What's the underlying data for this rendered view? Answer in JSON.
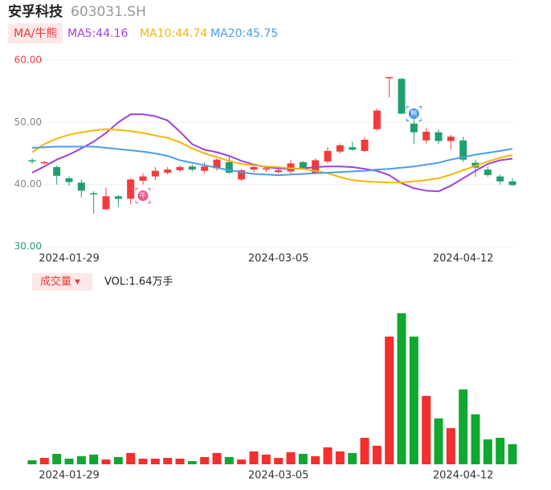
{
  "chart_data": {
    "type": "candlestick",
    "title": "安孚科技",
    "subtitle": "603031.SH",
    "legend_button": "MA/牛熊",
    "categories": [
      null,
      null,
      null,
      "2024-01-29",
      null,
      null,
      null,
      null,
      null,
      null,
      null,
      null,
      null,
      null,
      null,
      null,
      null,
      null,
      null,
      null,
      "2024-03-05",
      null,
      null,
      null,
      null,
      null,
      null,
      null,
      null,
      null,
      null,
      null,
      null,
      null,
      null,
      "2024-04-12",
      null,
      null,
      null,
      null
    ],
    "open": [
      43.9,
      43.5,
      42.8,
      41.0,
      40.3,
      38.6,
      36.0,
      38.1,
      37.7,
      40.6,
      41.3,
      41.9,
      42.3,
      42.9,
      42.2,
      42.6,
      43.6,
      40.8,
      42.4,
      42.4,
      42.0,
      42.1,
      43.6,
      41.9,
      43.7,
      45.3,
      46.0,
      45.4,
      48.9,
      57.1,
      57.0,
      49.8,
      47.1,
      48.4,
      47.0,
      47.1,
      43.5,
      42.4,
      41.3,
      40.5
    ],
    "high": [
      44.2,
      43.8,
      43.1,
      41.3,
      40.8,
      38.9,
      39.5,
      38.3,
      41.0,
      41.8,
      42.8,
      42.8,
      43.1,
      43.2,
      43.6,
      44.2,
      44.5,
      42.5,
      43.0,
      43.0,
      42.6,
      44.0,
      43.8,
      44.2,
      46.0,
      46.6,
      46.9,
      47.6,
      52.2,
      57.3,
      57.2,
      50.5,
      49.1,
      48.8,
      48.0,
      47.7,
      44.0,
      42.9,
      41.6,
      41.0
    ],
    "low": [
      43.3,
      43.2,
      40.0,
      39.8,
      37.9,
      35.3,
      36.0,
      36.4,
      36.8,
      40.0,
      40.7,
      41.6,
      42.0,
      42.1,
      41.8,
      42.2,
      41.7,
      40.6,
      42.0,
      42.0,
      41.8,
      41.8,
      42.4,
      41.8,
      43.4,
      45.0,
      45.4,
      45.2,
      48.6,
      54.0,
      51.3,
      46.5,
      46.6,
      46.5,
      45.6,
      43.6,
      41.2,
      41.2,
      40.0,
      39.8
    ],
    "close": [
      43.7,
      43.6,
      41.4,
      40.4,
      39.0,
      38.4,
      38.1,
      37.7,
      40.8,
      41.3,
      42.2,
      42.4,
      42.8,
      42.4,
      42.9,
      44.0,
      41.9,
      42.3,
      42.8,
      42.6,
      42.3,
      43.4,
      42.6,
      43.9,
      45.4,
      46.3,
      45.6,
      47.2,
      51.9,
      57.3,
      51.4,
      48.4,
      48.5,
      47.0,
      47.7,
      44.0,
      42.7,
      41.5,
      40.5,
      39.9
    ],
    "up_color": "#f23b3b",
    "down_color": "#1f9f6e",
    "series": [
      {
        "name": "MA5:44.16",
        "color": "#a040e0",
        "values": [
          41.9,
          42.9,
          44.0,
          44.8,
          45.8,
          46.9,
          48.3,
          50.0,
          51.3,
          51.3,
          51.0,
          50.3,
          48.5,
          46.5,
          45.6,
          45.2,
          44.6,
          43.8,
          43.2,
          42.8,
          42.6,
          42.5,
          42.6,
          42.8,
          42.9,
          42.9,
          42.8,
          42.5,
          42.2,
          41.5,
          40.2,
          39.4,
          39.0,
          38.9,
          39.8,
          41.0,
          42.2,
          43.3,
          43.9,
          44.16
        ]
      },
      {
        "name": "MA10:44.74",
        "color": "#f2b705",
        "values": [
          45.2,
          46.5,
          47.4,
          48.0,
          48.4,
          48.7,
          48.9,
          48.8,
          48.6,
          48.3,
          47.9,
          47.5,
          46.8,
          45.8,
          45.0,
          44.4,
          43.8,
          43.3,
          43.1,
          42.9,
          42.8,
          42.6,
          42.5,
          42.2,
          41.8,
          41.2,
          40.7,
          40.5,
          40.4,
          40.3,
          40.3,
          40.5,
          40.7,
          41.0,
          41.6,
          42.3,
          43.0,
          43.7,
          44.3,
          44.74
        ]
      },
      {
        "name": "MA20:45.75",
        "color": "#4a9ee8",
        "values": [
          45.9,
          46.0,
          46.1,
          46.1,
          46.1,
          46.1,
          45.9,
          45.7,
          45.5,
          45.3,
          45.0,
          44.6,
          43.9,
          43.5,
          43.1,
          42.7,
          42.3,
          42.0,
          41.7,
          41.6,
          41.5,
          41.6,
          41.7,
          41.8,
          41.9,
          42.0,
          42.1,
          42.2,
          42.4,
          42.5,
          42.7,
          42.9,
          43.2,
          43.5,
          44.0,
          44.4,
          44.8,
          45.1,
          45.4,
          45.75
        ]
      }
    ],
    "ylim": [
      30,
      60
    ],
    "yticks": [
      {
        "value": 30,
        "label": "30.00"
      },
      {
        "value": 40,
        "label": "40.00"
      },
      {
        "value": 50,
        "label": "50.00"
      },
      {
        "value": 60,
        "label": "60.00"
      }
    ],
    "ytick_colors": [
      "#1f9f6e",
      "#888888",
      "#888888",
      "#f23b3b"
    ],
    "grid": true,
    "signals": [
      {
        "label": "牛",
        "category_index": 9,
        "kind": "bull",
        "color": "#f0508a"
      },
      {
        "label": "熊",
        "category_index": 31,
        "kind": "bear",
        "color": "#3a8ee6"
      }
    ],
    "volume": {
      "button": "成交量 ▾",
      "name": "VOL:1.64万手",
      "values": [
        0.33,
        0.52,
        0.85,
        0.46,
        0.66,
        0.79,
        0.39,
        0.59,
        0.92,
        0.46,
        0.46,
        0.52,
        0.46,
        0.26,
        0.59,
        0.92,
        0.59,
        0.39,
        1.05,
        0.79,
        0.52,
        0.98,
        0.85,
        0.66,
        1.38,
        1.05,
        0.92,
        2.16,
        1.51,
        10.4,
        12.3,
        10.4,
        5.57,
        3.74,
        2.95,
        6.1,
        4.07,
        2.03,
        2.16,
        1.64
      ],
      "colors": {
        "up": "#f52e2e",
        "down": "#10a830"
      }
    }
  }
}
